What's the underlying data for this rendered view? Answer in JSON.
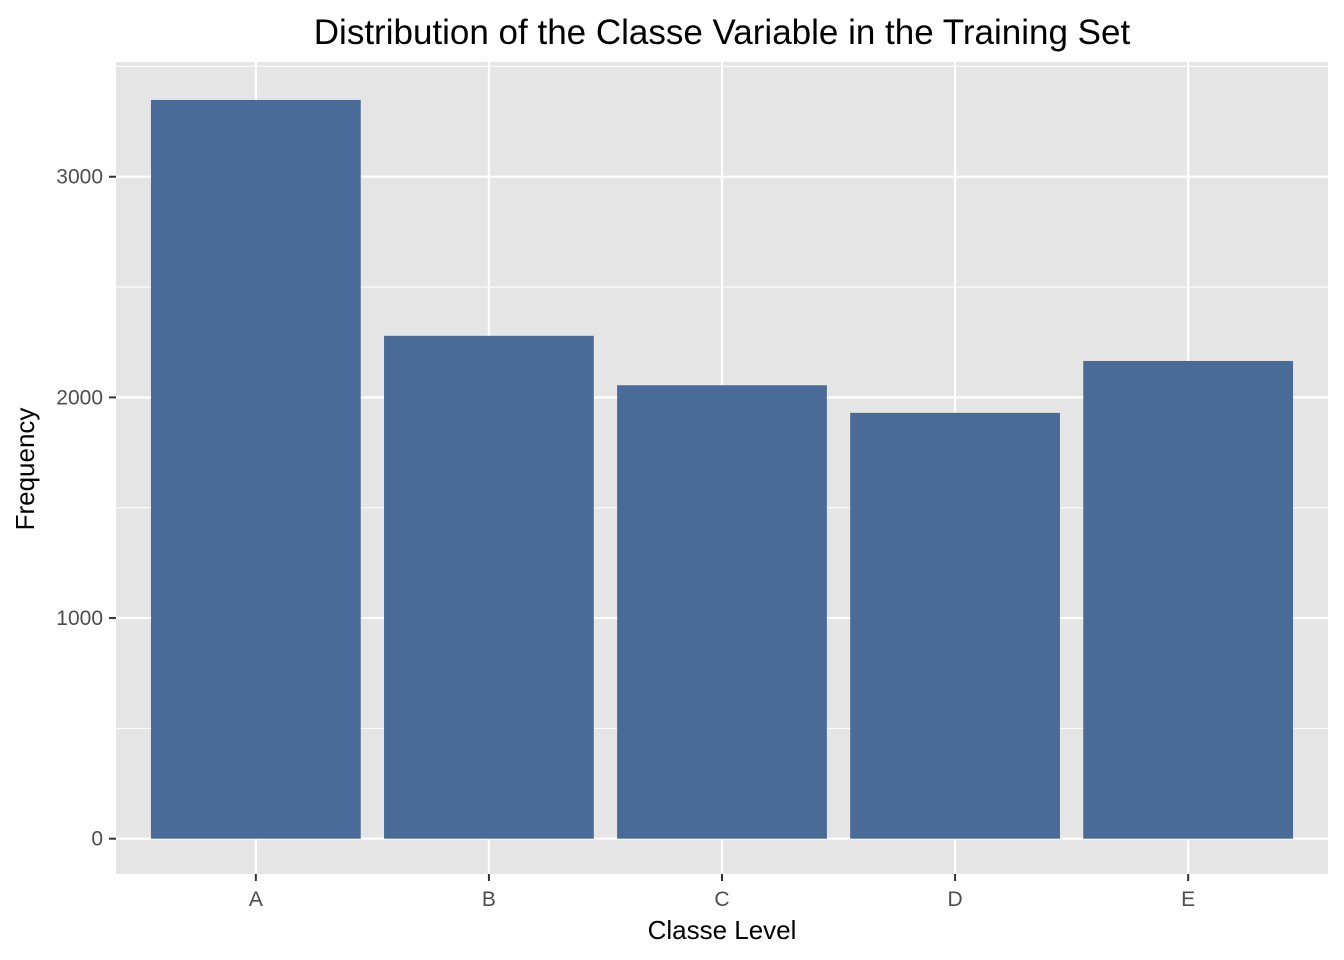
{
  "chart_data": {
    "type": "bar",
    "title": "Distribution of the Classe Variable in the Training Set",
    "xlabel": "Classe Level",
    "ylabel": "Frequency",
    "categories": [
      "A",
      "B",
      "C",
      "D",
      "E"
    ],
    "values": [
      3348,
      2279,
      2055,
      1930,
      2165
    ],
    "ylim": [
      -160,
      3520
    ],
    "yticks": [
      0,
      1000,
      2000,
      3000
    ],
    "ytick_labels": [
      "0",
      "1000",
      "2000",
      "3000"
    ],
    "grid": true,
    "legend": "none",
    "colors": {
      "bar": "#4a6b98",
      "panel": "#e5e5e5",
      "grid": "#ffffff",
      "tick": "#333333"
    }
  }
}
